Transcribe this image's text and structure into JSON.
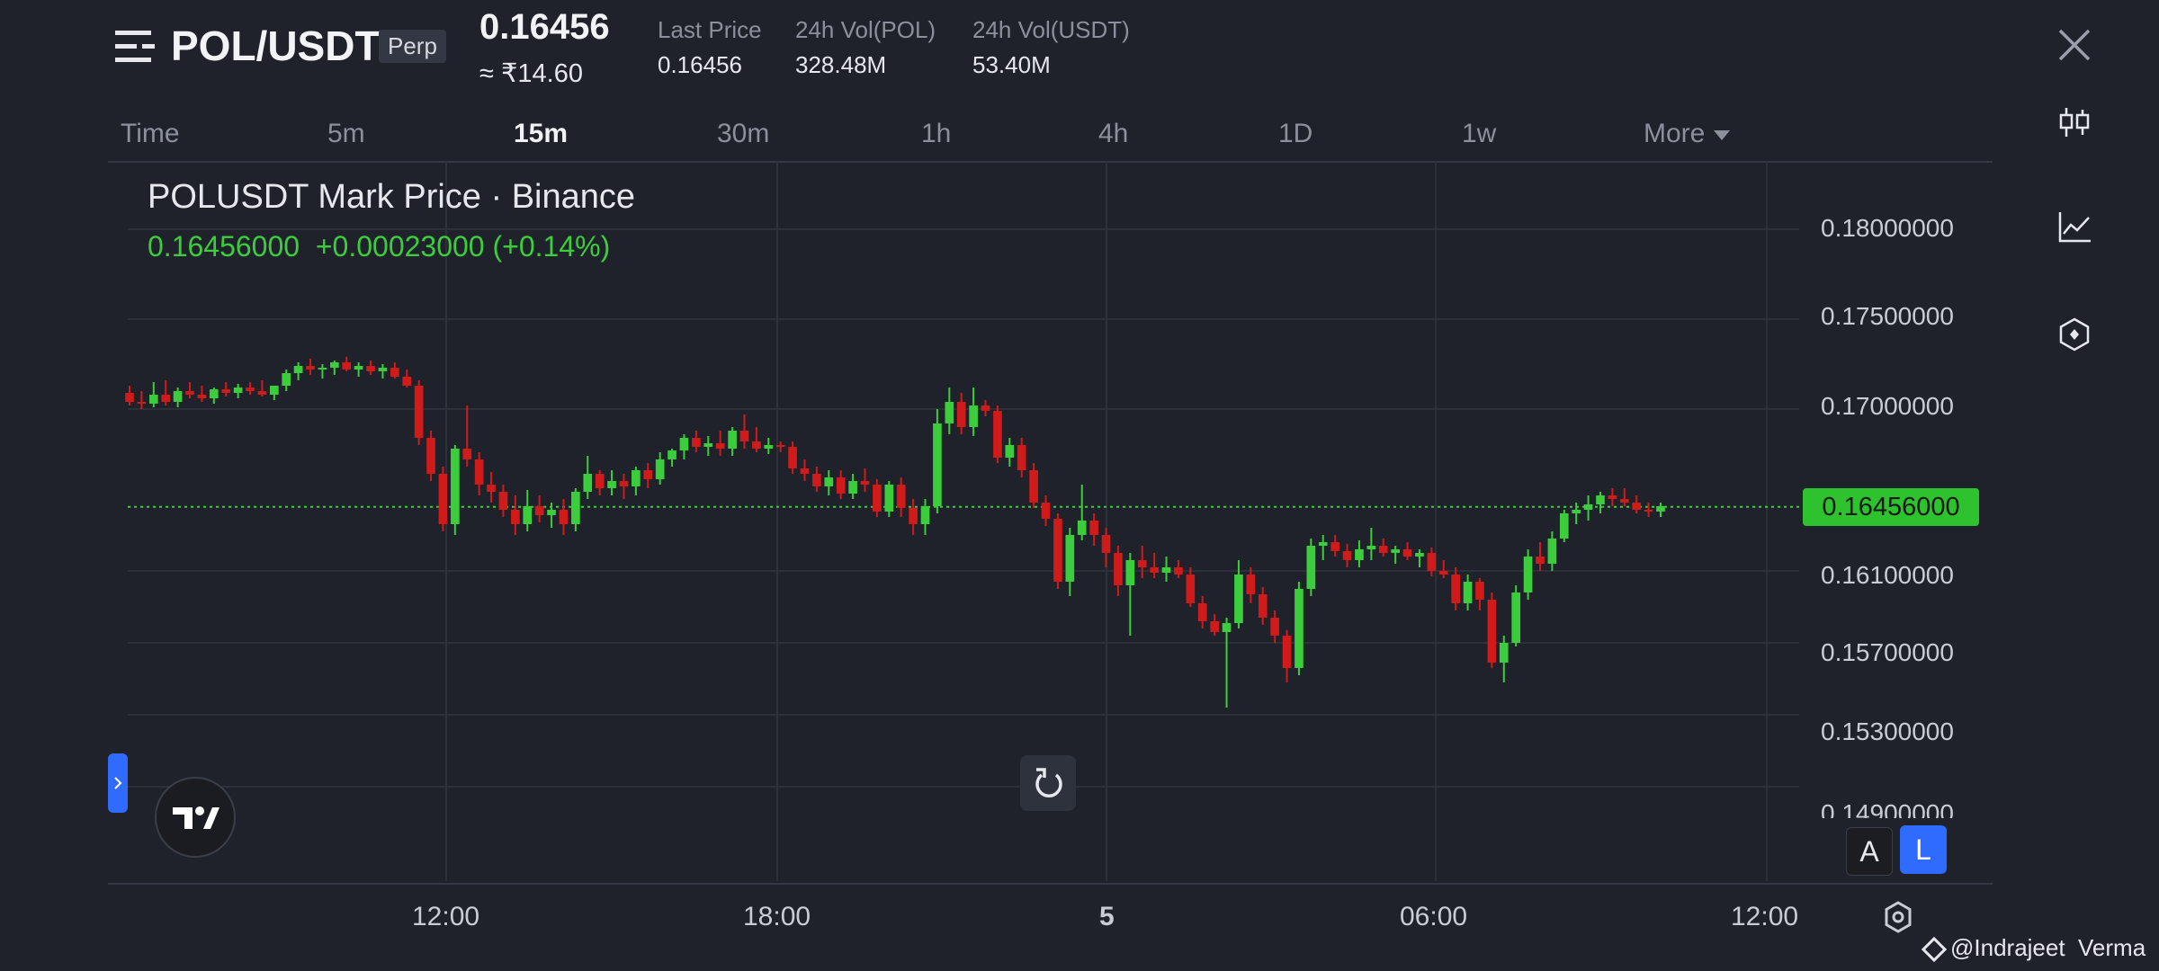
{
  "header": {
    "pair": "POL/USDT",
    "badge": "Perp",
    "price": "0.16456",
    "price_inr": "≈ ₹14.60",
    "stats": [
      {
        "label": "Last Price",
        "value": "0.16456"
      },
      {
        "label": "24h Vol(POL)",
        "value": "328.48M"
      },
      {
        "label": "24h Vol(USDT)",
        "value": "53.40M"
      }
    ]
  },
  "timeframes": [
    "Time",
    "5m",
    "15m",
    "30m",
    "1h",
    "4h",
    "1D",
    "1w",
    "More"
  ],
  "active_timeframe": "15m",
  "chart": {
    "title": "POLUSDT Mark Price · Binance",
    "ohlc_line": "0.16456000  +0.00023000 (+0.14%)",
    "current_price_tag": "0.16456000",
    "y_ticks": [
      "0.18000000",
      "0.17500000",
      "0.17000000",
      "0.16100000",
      "0.15700000",
      "0.15300000",
      "0.14900000"
    ],
    "x_ticks": [
      "12:00",
      "18:00",
      "5",
      "06:00",
      "12:00"
    ]
  },
  "chart_data": {
    "type": "candlestick",
    "title": "POLUSDT Mark Price · Binance",
    "last_price": 0.16456,
    "change": 0.00023,
    "change_percent": 0.14,
    "y_ticks": [
      0.18,
      0.175,
      0.17,
      0.161,
      0.157,
      0.153,
      0.149
    ],
    "x_ticks": [
      "12:00",
      "18:00",
      "5",
      "06:00",
      "12:00"
    ],
    "colors": {
      "up": "#3ccd3c",
      "down": "#d11a1a"
    },
    "candles": [
      {
        "o": 0.1709,
        "h": 0.1713,
        "l": 0.1702,
        "c": 0.1704
      },
      {
        "o": 0.1704,
        "h": 0.171,
        "l": 0.17,
        "c": 0.1703
      },
      {
        "o": 0.1703,
        "h": 0.1715,
        "l": 0.1701,
        "c": 0.1708
      },
      {
        "o": 0.1708,
        "h": 0.1716,
        "l": 0.1702,
        "c": 0.1704
      },
      {
        "o": 0.1704,
        "h": 0.1712,
        "l": 0.1701,
        "c": 0.171
      },
      {
        "o": 0.171,
        "h": 0.1715,
        "l": 0.1706,
        "c": 0.1708
      },
      {
        "o": 0.1708,
        "h": 0.1713,
        "l": 0.1704,
        "c": 0.1706
      },
      {
        "o": 0.1706,
        "h": 0.1712,
        "l": 0.1703,
        "c": 0.1711
      },
      {
        "o": 0.1711,
        "h": 0.1715,
        "l": 0.1707,
        "c": 0.1709
      },
      {
        "o": 0.1709,
        "h": 0.1714,
        "l": 0.1706,
        "c": 0.1712
      },
      {
        "o": 0.1712,
        "h": 0.1715,
        "l": 0.1708,
        "c": 0.171
      },
      {
        "o": 0.171,
        "h": 0.1716,
        "l": 0.1707,
        "c": 0.1708
      },
      {
        "o": 0.1708,
        "h": 0.1713,
        "l": 0.1705,
        "c": 0.1713
      },
      {
        "o": 0.1713,
        "h": 0.1722,
        "l": 0.171,
        "c": 0.172
      },
      {
        "o": 0.172,
        "h": 0.1726,
        "l": 0.1716,
        "c": 0.1724
      },
      {
        "o": 0.1724,
        "h": 0.1728,
        "l": 0.1719,
        "c": 0.1722
      },
      {
        "o": 0.1722,
        "h": 0.1725,
        "l": 0.1717,
        "c": 0.1723
      },
      {
        "o": 0.1723,
        "h": 0.1727,
        "l": 0.1719,
        "c": 0.1726
      },
      {
        "o": 0.1726,
        "h": 0.1729,
        "l": 0.1721,
        "c": 0.1722
      },
      {
        "o": 0.1722,
        "h": 0.1726,
        "l": 0.1718,
        "c": 0.1724
      },
      {
        "o": 0.1724,
        "h": 0.1727,
        "l": 0.1719,
        "c": 0.1721
      },
      {
        "o": 0.1721,
        "h": 0.1725,
        "l": 0.1717,
        "c": 0.1723
      },
      {
        "o": 0.1723,
        "h": 0.1726,
        "l": 0.1717,
        "c": 0.1718
      },
      {
        "o": 0.1718,
        "h": 0.1722,
        "l": 0.1712,
        "c": 0.1713
      },
      {
        "o": 0.1713,
        "h": 0.1716,
        "l": 0.168,
        "c": 0.1684
      },
      {
        "o": 0.1684,
        "h": 0.1688,
        "l": 0.166,
        "c": 0.1664
      },
      {
        "o": 0.1664,
        "h": 0.1668,
        "l": 0.1632,
        "c": 0.1636
      },
      {
        "o": 0.1636,
        "h": 0.168,
        "l": 0.163,
        "c": 0.1678
      },
      {
        "o": 0.1678,
        "h": 0.1702,
        "l": 0.1668,
        "c": 0.1672
      },
      {
        "o": 0.1672,
        "h": 0.1676,
        "l": 0.1652,
        "c": 0.1658
      },
      {
        "o": 0.1658,
        "h": 0.1665,
        "l": 0.1648,
        "c": 0.1654
      },
      {
        "o": 0.1654,
        "h": 0.1658,
        "l": 0.164,
        "c": 0.1644
      },
      {
        "o": 0.1644,
        "h": 0.1652,
        "l": 0.163,
        "c": 0.1636
      },
      {
        "o": 0.1636,
        "h": 0.1655,
        "l": 0.1632,
        "c": 0.1646
      },
      {
        "o": 0.1646,
        "h": 0.1652,
        "l": 0.1637,
        "c": 0.1641
      },
      {
        "o": 0.1641,
        "h": 0.1648,
        "l": 0.1634,
        "c": 0.1644
      },
      {
        "o": 0.1644,
        "h": 0.165,
        "l": 0.163,
        "c": 0.1636
      },
      {
        "o": 0.1636,
        "h": 0.1656,
        "l": 0.1632,
        "c": 0.1654
      },
      {
        "o": 0.1654,
        "h": 0.1674,
        "l": 0.165,
        "c": 0.1664
      },
      {
        "o": 0.1664,
        "h": 0.1666,
        "l": 0.1652,
        "c": 0.1656
      },
      {
        "o": 0.1656,
        "h": 0.1666,
        "l": 0.1652,
        "c": 0.166
      },
      {
        "o": 0.166,
        "h": 0.1664,
        "l": 0.165,
        "c": 0.1657
      },
      {
        "o": 0.1657,
        "h": 0.1668,
        "l": 0.1652,
        "c": 0.1666
      },
      {
        "o": 0.1666,
        "h": 0.167,
        "l": 0.1656,
        "c": 0.1661
      },
      {
        "o": 0.1661,
        "h": 0.1676,
        "l": 0.1658,
        "c": 0.1672
      },
      {
        "o": 0.1672,
        "h": 0.1678,
        "l": 0.1668,
        "c": 0.1677
      },
      {
        "o": 0.1677,
        "h": 0.1686,
        "l": 0.1672,
        "c": 0.1684
      },
      {
        "o": 0.1684,
        "h": 0.1688,
        "l": 0.1676,
        "c": 0.1679
      },
      {
        "o": 0.1679,
        "h": 0.1685,
        "l": 0.1674,
        "c": 0.1681
      },
      {
        "o": 0.1681,
        "h": 0.1688,
        "l": 0.1674,
        "c": 0.1678
      },
      {
        "o": 0.1678,
        "h": 0.169,
        "l": 0.1674,
        "c": 0.1688
      },
      {
        "o": 0.1688,
        "h": 0.1697,
        "l": 0.1678,
        "c": 0.1682
      },
      {
        "o": 0.1682,
        "h": 0.169,
        "l": 0.1676,
        "c": 0.1678
      },
      {
        "o": 0.1678,
        "h": 0.1684,
        "l": 0.1675,
        "c": 0.168
      },
      {
        "o": 0.168,
        "h": 0.1682,
        "l": 0.1676,
        "c": 0.1679
      },
      {
        "o": 0.1679,
        "h": 0.1682,
        "l": 0.1664,
        "c": 0.1667
      },
      {
        "o": 0.1667,
        "h": 0.1672,
        "l": 0.166,
        "c": 0.1664
      },
      {
        "o": 0.1664,
        "h": 0.1668,
        "l": 0.1654,
        "c": 0.1657
      },
      {
        "o": 0.1657,
        "h": 0.1666,
        "l": 0.1652,
        "c": 0.1662
      },
      {
        "o": 0.1662,
        "h": 0.1666,
        "l": 0.165,
        "c": 0.1653
      },
      {
        "o": 0.1653,
        "h": 0.1664,
        "l": 0.165,
        "c": 0.166
      },
      {
        "o": 0.166,
        "h": 0.1667,
        "l": 0.1654,
        "c": 0.1658
      },
      {
        "o": 0.1658,
        "h": 0.1661,
        "l": 0.164,
        "c": 0.1643
      },
      {
        "o": 0.1643,
        "h": 0.166,
        "l": 0.164,
        "c": 0.1658
      },
      {
        "o": 0.1658,
        "h": 0.1662,
        "l": 0.164,
        "c": 0.1645
      },
      {
        "o": 0.1645,
        "h": 0.165,
        "l": 0.163,
        "c": 0.1636
      },
      {
        "o": 0.1636,
        "h": 0.165,
        "l": 0.163,
        "c": 0.1646
      },
      {
        "o": 0.1646,
        "h": 0.17,
        "l": 0.1642,
        "c": 0.1692
      },
      {
        "o": 0.1692,
        "h": 0.1712,
        "l": 0.1686,
        "c": 0.1704
      },
      {
        "o": 0.1704,
        "h": 0.1709,
        "l": 0.1686,
        "c": 0.169
      },
      {
        "o": 0.169,
        "h": 0.1712,
        "l": 0.1685,
        "c": 0.1702
      },
      {
        "o": 0.1702,
        "h": 0.1705,
        "l": 0.1696,
        "c": 0.1699
      },
      {
        "o": 0.1699,
        "h": 0.1702,
        "l": 0.167,
        "c": 0.1673
      },
      {
        "o": 0.1673,
        "h": 0.1684,
        "l": 0.1668,
        "c": 0.168
      },
      {
        "o": 0.168,
        "h": 0.1684,
        "l": 0.1662,
        "c": 0.1666
      },
      {
        "o": 0.1666,
        "h": 0.167,
        "l": 0.1645,
        "c": 0.1648
      },
      {
        "o": 0.1648,
        "h": 0.1652,
        "l": 0.1635,
        "c": 0.1639
      },
      {
        "o": 0.1639,
        "h": 0.1642,
        "l": 0.16,
        "c": 0.1604
      },
      {
        "o": 0.1604,
        "h": 0.1634,
        "l": 0.1596,
        "c": 0.163
      },
      {
        "o": 0.163,
        "h": 0.1658,
        "l": 0.1627,
        "c": 0.1638
      },
      {
        "o": 0.1638,
        "h": 0.1642,
        "l": 0.1624,
        "c": 0.163
      },
      {
        "o": 0.163,
        "h": 0.1634,
        "l": 0.1612,
        "c": 0.162
      },
      {
        "o": 0.162,
        "h": 0.1624,
        "l": 0.1596,
        "c": 0.1602
      },
      {
        "o": 0.1602,
        "h": 0.162,
        "l": 0.1574,
        "c": 0.1616
      },
      {
        "o": 0.1616,
        "h": 0.1624,
        "l": 0.1606,
        "c": 0.1612
      },
      {
        "o": 0.1612,
        "h": 0.162,
        "l": 0.1606,
        "c": 0.1609
      },
      {
        "o": 0.1609,
        "h": 0.1618,
        "l": 0.1604,
        "c": 0.1612
      },
      {
        "o": 0.1612,
        "h": 0.1616,
        "l": 0.1606,
        "c": 0.1608
      },
      {
        "o": 0.1608,
        "h": 0.1612,
        "l": 0.159,
        "c": 0.1592
      },
      {
        "o": 0.1592,
        "h": 0.1596,
        "l": 0.1578,
        "c": 0.1582
      },
      {
        "o": 0.1582,
        "h": 0.1586,
        "l": 0.1574,
        "c": 0.1576
      },
      {
        "o": 0.1576,
        "h": 0.1584,
        "l": 0.1534,
        "c": 0.1581
      },
      {
        "o": 0.1581,
        "h": 0.1616,
        "l": 0.1578,
        "c": 0.1608
      },
      {
        "o": 0.1608,
        "h": 0.1612,
        "l": 0.1592,
        "c": 0.1597
      },
      {
        "o": 0.1597,
        "h": 0.1601,
        "l": 0.158,
        "c": 0.1584
      },
      {
        "o": 0.1584,
        "h": 0.1588,
        "l": 0.157,
        "c": 0.1574
      },
      {
        "o": 0.1574,
        "h": 0.1577,
        "l": 0.1548,
        "c": 0.1556
      },
      {
        "o": 0.1556,
        "h": 0.1604,
        "l": 0.1552,
        "c": 0.16
      },
      {
        "o": 0.16,
        "h": 0.1628,
        "l": 0.1596,
        "c": 0.1624
      },
      {
        "o": 0.1624,
        "h": 0.163,
        "l": 0.1616,
        "c": 0.1626
      },
      {
        "o": 0.1626,
        "h": 0.163,
        "l": 0.1618,
        "c": 0.1621
      },
      {
        "o": 0.1621,
        "h": 0.1625,
        "l": 0.1612,
        "c": 0.1616
      },
      {
        "o": 0.1616,
        "h": 0.1627,
        "l": 0.1612,
        "c": 0.1622
      },
      {
        "o": 0.1622,
        "h": 0.1634,
        "l": 0.1616,
        "c": 0.1624
      },
      {
        "o": 0.1624,
        "h": 0.1628,
        "l": 0.1618,
        "c": 0.162
      },
      {
        "o": 0.162,
        "h": 0.1624,
        "l": 0.1614,
        "c": 0.1622
      },
      {
        "o": 0.1622,
        "h": 0.1626,
        "l": 0.1616,
        "c": 0.1618
      },
      {
        "o": 0.1618,
        "h": 0.1622,
        "l": 0.1612,
        "c": 0.162
      },
      {
        "o": 0.162,
        "h": 0.1623,
        "l": 0.1607,
        "c": 0.161
      },
      {
        "o": 0.161,
        "h": 0.1616,
        "l": 0.1606,
        "c": 0.1608
      },
      {
        "o": 0.1608,
        "h": 0.1612,
        "l": 0.1588,
        "c": 0.1592
      },
      {
        "o": 0.1592,
        "h": 0.1608,
        "l": 0.1588,
        "c": 0.1604
      },
      {
        "o": 0.1604,
        "h": 0.1606,
        "l": 0.1588,
        "c": 0.1594
      },
      {
        "o": 0.1594,
        "h": 0.1598,
        "l": 0.1556,
        "c": 0.1559
      },
      {
        "o": 0.1559,
        "h": 0.1574,
        "l": 0.1548,
        "c": 0.157
      },
      {
        "o": 0.157,
        "h": 0.1602,
        "l": 0.1568,
        "c": 0.1598
      },
      {
        "o": 0.1598,
        "h": 0.1622,
        "l": 0.1594,
        "c": 0.1618
      },
      {
        "o": 0.1618,
        "h": 0.1626,
        "l": 0.161,
        "c": 0.1614
      },
      {
        "o": 0.1614,
        "h": 0.1632,
        "l": 0.161,
        "c": 0.1628
      },
      {
        "o": 0.1628,
        "h": 0.1644,
        "l": 0.1626,
        "c": 0.1642
      },
      {
        "o": 0.1642,
        "h": 0.1648,
        "l": 0.1636,
        "c": 0.1644
      },
      {
        "o": 0.1644,
        "h": 0.1652,
        "l": 0.1638,
        "c": 0.1647
      },
      {
        "o": 0.1647,
        "h": 0.1654,
        "l": 0.1642,
        "c": 0.1652
      },
      {
        "o": 0.1652,
        "h": 0.1656,
        "l": 0.1646,
        "c": 0.165
      },
      {
        "o": 0.165,
        "h": 0.1656,
        "l": 0.1646,
        "c": 0.1648
      },
      {
        "o": 0.1648,
        "h": 0.1652,
        "l": 0.1642,
        "c": 0.1644
      },
      {
        "o": 0.1644,
        "h": 0.1648,
        "l": 0.164,
        "c": 0.1643
      },
      {
        "o": 0.1643,
        "h": 0.1648,
        "l": 0.164,
        "c": 0.1646
      }
    ]
  },
  "chart_controls": {
    "auto": "A",
    "log": "L"
  },
  "watermark": "@Indrajeet  Verma",
  "icons": [
    "menu-icon",
    "close-icon",
    "candlestick-icon",
    "line-chart-icon",
    "indicator-icon",
    "settings-icon",
    "reset-icon",
    "tradingview-logo"
  ]
}
